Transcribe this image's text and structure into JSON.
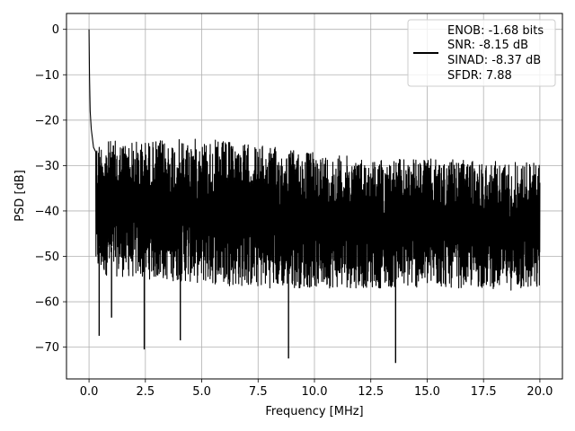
{
  "chart_data": {
    "type": "line",
    "title": "",
    "xlabel": "Frequency [MHz]",
    "ylabel": "PSD [dB]",
    "xlim": [
      -1.0,
      21.0
    ],
    "ylim": [
      -77.0,
      3.5
    ],
    "xticks": [
      0.0,
      2.5,
      5.0,
      7.5,
      10.0,
      12.5,
      15.0,
      17.5,
      20.0
    ],
    "xtick_labels": [
      "0.0",
      "2.5",
      "5.0",
      "7.5",
      "10.0",
      "12.5",
      "15.0",
      "17.5",
      "20.0"
    ],
    "yticks": [
      0,
      -10,
      -20,
      -30,
      -40,
      -50,
      -60,
      -70
    ],
    "ytick_labels": [
      "0",
      "−10",
      "−20",
      "−30",
      "−40",
      "−50",
      "−60",
      "−70"
    ],
    "grid": true,
    "legend_placement": "top-right",
    "legend_lines": [
      "ENOB: -1.68 bits",
      "SNR: -8.15 dB",
      "SINAD: -8.37 dB",
      "SFDR: 7.88"
    ],
    "series": [
      {
        "color": "#000000",
        "description": "dense noise-floor spectrum; summary envelope points below",
        "x": [
          0.0,
          0.02,
          0.05,
          0.1,
          0.2,
          0.3,
          0.5,
          1.0,
          2.5,
          4.0,
          5.0,
          7.5,
          8.8,
          10.0,
          12.5,
          13.6,
          15.0,
          17.5,
          20.0
        ],
        "y": [
          0.0,
          -10.0,
          -18.0,
          -22.0,
          -26.0,
          -27.0,
          -29.0,
          -35.0,
          -40.0,
          -40.0,
          -40.0,
          -40.0,
          -40.0,
          -40.0,
          -40.0,
          -40.0,
          -40.0,
          -40.0,
          -40.0
        ],
        "upper_envelope": [
          [
            0.3,
            -24.5
          ],
          [
            2.5,
            -24.5
          ],
          [
            5.0,
            -24.0
          ],
          [
            7.5,
            -25.5
          ],
          [
            10.0,
            -27.0
          ],
          [
            12.5,
            -28.5
          ],
          [
            15.0,
            -28.5
          ],
          [
            17.5,
            -29.0
          ],
          [
            20.0,
            -29.0
          ]
        ],
        "lower_envelope": [
          [
            0.3,
            -54.0
          ],
          [
            2.5,
            -55.0
          ],
          [
            5.0,
            -56.0
          ],
          [
            7.5,
            -57.0
          ],
          [
            10.0,
            -57.0
          ],
          [
            12.5,
            -57.0
          ],
          [
            15.0,
            -57.0
          ],
          [
            17.5,
            -57.0
          ],
          [
            20.0,
            -58.0
          ]
        ],
        "notable_minima": [
          [
            0.45,
            -67.5
          ],
          [
            1.0,
            -63.5
          ],
          [
            2.45,
            -70.5
          ],
          [
            4.05,
            -68.5
          ],
          [
            8.85,
            -72.5
          ],
          [
            13.6,
            -73.5
          ]
        ]
      }
    ]
  }
}
